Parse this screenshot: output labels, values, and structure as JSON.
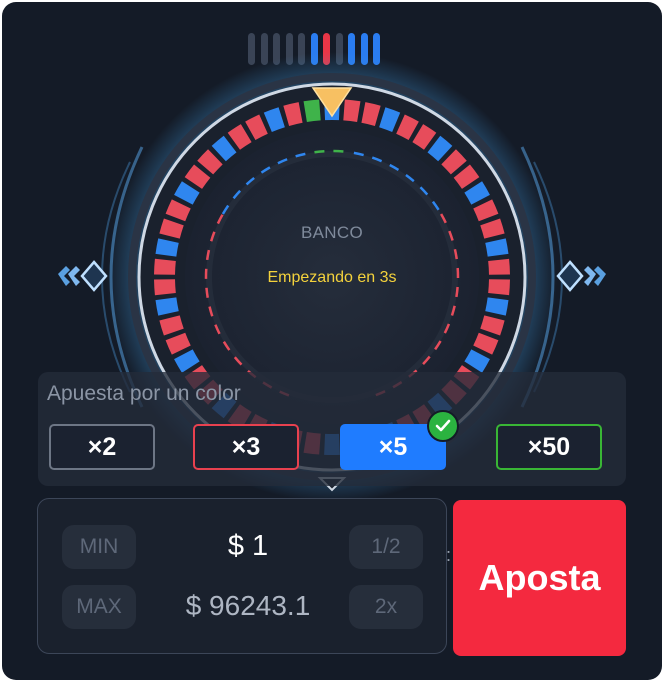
{
  "history": {
    "colors": [
      "#3a4456",
      "#3a4456",
      "#3a4456",
      "#3a4456",
      "#3a4456",
      "#2a7cf0",
      "#e83647",
      "#3a4456",
      "#2a7cf0",
      "#2a7cf0",
      "#2a7cf0"
    ]
  },
  "wheel": {
    "center_label": "BANCO",
    "status": "Empezando en 3s",
    "colors": {
      "red": "#e74c5b",
      "blue": "#2f86ef",
      "green": "#3fb34a",
      "pointer": "#f7c062"
    }
  },
  "bet": {
    "title": "Apuesta por un color",
    "multipliers": [
      {
        "label": "×2",
        "color": "#6d7685"
      },
      {
        "label": "×3",
        "color": "#e8414f"
      },
      {
        "label": "×5",
        "color": "#1f7cff",
        "selected": true
      },
      {
        "label": "×50",
        "color": "#39b635"
      }
    ]
  },
  "amount": {
    "min_label": "MIN",
    "max_label": "MAX",
    "half_label": "1/2",
    "double_label": "2x",
    "value": "$  1",
    "balance": "$ 96243.1"
  },
  "separator": ":",
  "action": {
    "label": "Aposta",
    "color": "#f4293f"
  }
}
